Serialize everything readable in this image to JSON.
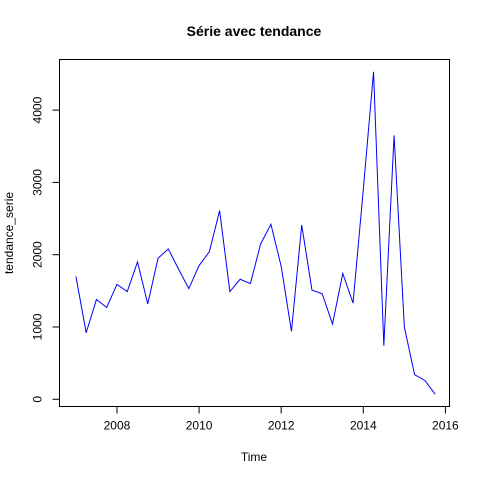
{
  "chart_data": {
    "type": "line",
    "title": "Série avec tendance",
    "xlabel": "Time",
    "ylabel": "tendance_serie",
    "xlim": [
      2006.6,
      2016.1
    ],
    "ylim": [
      -100,
      4700
    ],
    "x_ticks": [
      2008,
      2010,
      2012,
      2014,
      2016
    ],
    "y_ticks": [
      0,
      1000,
      2000,
      3000,
      4000
    ],
    "grid": false,
    "legend": "none",
    "line_color": "#0000ff",
    "series": [
      {
        "x": [
          2007.0,
          2007.25,
          2007.5,
          2007.75,
          2008.0,
          2008.25,
          2008.5,
          2008.75,
          2009.0,
          2009.25,
          2009.5,
          2009.75,
          2010.0,
          2010.25,
          2010.5,
          2010.75,
          2011.0,
          2011.25,
          2011.5,
          2011.75,
          2012.0,
          2012.25,
          2012.5,
          2012.75,
          2013.0,
          2013.25,
          2013.5,
          2013.75,
          2014.0,
          2014.25,
          2014.5,
          2014.75,
          2015.0,
          2015.25,
          2015.5,
          2015.75
        ],
        "values": [
          1700,
          920,
          1380,
          1270,
          1590,
          1490,
          1900,
          1320,
          1950,
          2080,
          1800,
          1530,
          1850,
          2040,
          2610,
          1490,
          1660,
          1600,
          2150,
          2420,
          1840,
          940,
          2410,
          1510,
          1460,
          1040,
          1740,
          1330,
          2900,
          4530,
          740,
          3650,
          1000,
          340,
          260,
          70
        ]
      }
    ]
  }
}
